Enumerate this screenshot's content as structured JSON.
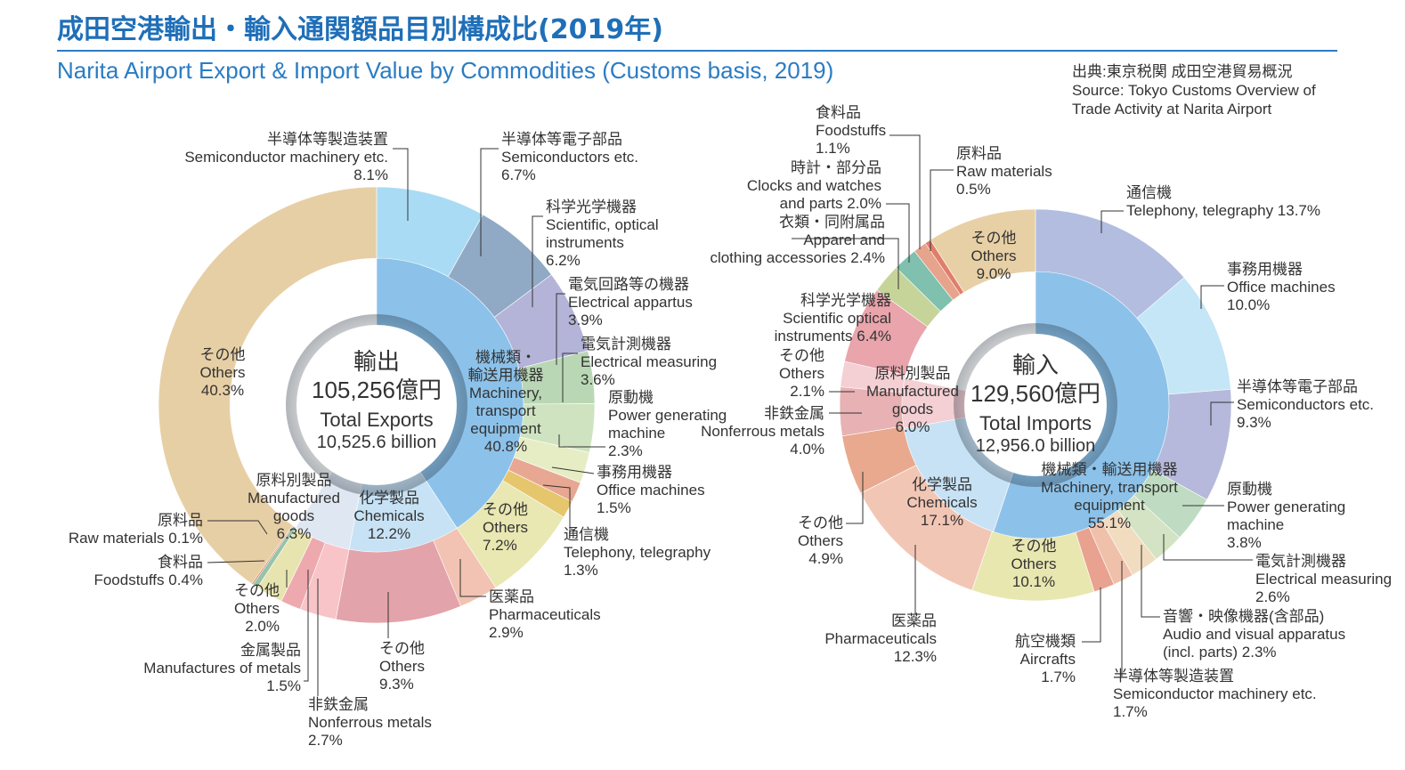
{
  "header": {
    "title_jp": "成田空港輸出・輸入通関額品目別構成比(2019年)",
    "title_en": "Narita Airport Export & Import Value by Commodities (Customs basis, 2019)",
    "source_lines": [
      "出典:東京税関 成田空港貿易概況",
      "Source: Tokyo Customs Overview of",
      "Trade Activity at Narita Airport"
    ]
  },
  "chart_data": [
    {
      "type": "pie",
      "name": "exports",
      "center_label": [
        "輸出",
        "105,256億円",
        "Total Exports",
        "10,525.6 billion"
      ],
      "outer": [
        {
          "label": [
            "半導体等製造装置",
            "Semiconductor machinery etc.",
            "8.1%"
          ],
          "value": 8.1,
          "color": "#a9dcf4"
        },
        {
          "label": [
            "半導体等電子部品",
            "Semiconductors etc.",
            "6.7%"
          ],
          "value": 6.7,
          "color": "#90a9c4"
        },
        {
          "label": [
            "科学光学機器",
            "Scientific, optical",
            "instruments",
            "6.2%"
          ],
          "value": 6.2,
          "color": "#b4b3d8"
        },
        {
          "label": [
            "電気回路等の機器",
            "Electrical appartus",
            "3.9%"
          ],
          "value": 3.9,
          "color": "#b9d7b4"
        },
        {
          "label": [
            "電気計測機器",
            "Electrical measuring",
            "3.6%"
          ],
          "value": 3.6,
          "color": "#cfe3c0"
        },
        {
          "label": [
            "原動機",
            "Power generating",
            "machine",
            "2.3%"
          ],
          "value": 2.3,
          "color": "#e6edc5"
        },
        {
          "label": [
            "事務用機器",
            "Office machines",
            "1.5%"
          ],
          "value": 1.5,
          "color": "#e7a792"
        },
        {
          "label": [
            "通信機",
            "Telephony, telegraphy",
            "1.3%"
          ],
          "value": 1.3,
          "color": "#e6c66c"
        },
        {
          "label": [
            "その他",
            "Others",
            "7.2%"
          ],
          "value": 7.2,
          "color": "#e9e7b2"
        },
        {
          "label": [
            "医薬品",
            "Pharmaceuticals",
            "2.9%"
          ],
          "value": 2.9,
          "color": "#f2c3b2"
        },
        {
          "label": [
            "その他",
            "Others",
            "9.3%"
          ],
          "value": 9.3,
          "color": "#e3a3aa"
        },
        {
          "label": [
            "非鉄金属",
            "Nonferrous metals",
            "2.7%"
          ],
          "value": 2.7,
          "color": "#f8c4c8"
        },
        {
          "label": [
            "金属製品",
            "Manufactures of metals",
            "1.5%"
          ],
          "value": 1.5,
          "color": "#eda9ad"
        },
        {
          "label": [
            "その他",
            "Others",
            "2.0%"
          ],
          "value": 2.0,
          "color": "#e8e4b0"
        },
        {
          "label": [
            "食料品",
            "Foodstuffs 0.4%"
          ],
          "value": 0.4,
          "color": "#98c3a8"
        },
        {
          "label": [
            "原料品",
            "Raw materials 0.1%"
          ],
          "value": 0.1,
          "color": "#d9664c"
        },
        {
          "label": [
            "その他",
            "Others",
            "40.3%"
          ],
          "value": 40.3,
          "color": "#e7cfa5"
        }
      ],
      "inner": [
        {
          "label": [
            "機械類・",
            "輸送用機器",
            "Machinery,",
            "transport",
            "equipment",
            "40.8%"
          ],
          "value": 40.8,
          "color": "#8cc2ea"
        },
        {
          "label": [
            "化学製品",
            "Chemicals",
            "12.2%"
          ],
          "value": 12.2,
          "color": "#c8e2f5"
        },
        {
          "label": [
            "原料別製品",
            "Manufactured",
            "goods",
            "6.3%"
          ],
          "value": 6.3,
          "color": "#dfe7f2"
        },
        {
          "label": [],
          "value": 40.7,
          "color": "#ffffff"
        }
      ]
    },
    {
      "type": "pie",
      "name": "imports",
      "center_label": [
        "輸入",
        "129,560億円",
        "Total Imports",
        "12,956.0 billion"
      ],
      "outer": [
        {
          "label": [
            "通信機",
            "Telephony, telegraphy 13.7%"
          ],
          "value": 13.7,
          "color": "#b2bddf"
        },
        {
          "label": [
            "事務用機器",
            "Office machines",
            "10.0%"
          ],
          "value": 10.0,
          "color": "#c4e6f6"
        },
        {
          "label": [
            "半導体等電子部品",
            "Semiconductors etc.",
            "9.3%"
          ],
          "value": 9.3,
          "color": "#b6b9dc"
        },
        {
          "label": [
            "原動機",
            "Power generating",
            "machine",
            "3.8%"
          ],
          "value": 3.8,
          "color": "#bfdcc2"
        },
        {
          "label": [
            "電気計測機器",
            "Electrical measuring",
            "2.6%"
          ],
          "value": 2.6,
          "color": "#d3e3c3"
        },
        {
          "label": [
            "音響・映像機器(含部品)",
            "Audio and visual apparatus",
            "(incl. parts) 2.3%"
          ],
          "value": 2.3,
          "color": "#f1dcc0"
        },
        {
          "label": [
            "半導体等製造装置",
            "Semiconductor machinery etc.",
            "1.7%"
          ],
          "value": 1.7,
          "color": "#efc1ab"
        },
        {
          "label": [
            "航空機類",
            "Aircrafts",
            "1.7%"
          ],
          "value": 1.7,
          "color": "#e9a190"
        },
        {
          "label": [
            "その他",
            "Others",
            "10.1%"
          ],
          "value": 10.1,
          "color": "#e9e7b0"
        },
        {
          "label": [
            "医薬品",
            "Pharmaceuticals",
            "12.3%"
          ],
          "value": 12.3,
          "color": "#f2c6b5"
        },
        {
          "label": [
            "その他",
            "Others",
            "4.9%"
          ],
          "value": 4.9,
          "color": "#e8a98e"
        },
        {
          "label": [
            "非鉄金属",
            "Nonferrous metals",
            "4.0%"
          ],
          "value": 4.0,
          "color": "#e8b1b4"
        },
        {
          "label": [
            "その他",
            "Others",
            "2.1%"
          ],
          "value": 2.1,
          "color": "#f4cfd4"
        },
        {
          "label": [
            "科学光学機器",
            "Scientific optical",
            "instruments 6.4%"
          ],
          "value": 6.4,
          "color": "#e9a4ac"
        },
        {
          "label": [
            "衣類・同附属品",
            "Apparel and",
            "clothing accessories 2.4%"
          ],
          "value": 2.4,
          "color": "#c6d49a"
        },
        {
          "label": [
            "時計・部分品",
            "Clocks and watches",
            "and parts 2.0%"
          ],
          "value": 2.0,
          "color": "#7fc0ae"
        },
        {
          "label": [
            "食料品",
            "Foodstuffs",
            "1.1%"
          ],
          "value": 1.1,
          "color": "#e6a48c"
        },
        {
          "label": [
            "原料品",
            "Raw materials",
            "0.5%"
          ],
          "value": 0.5,
          "color": "#e07e6a"
        },
        {
          "label": [
            "その他",
            "Others",
            "9.0%"
          ],
          "value": 9.0,
          "color": "#e8d0a6"
        }
      ],
      "inner": [
        {
          "label": [
            "機械類・輸送用機器",
            "Machinery, transport",
            "equipment",
            "55.1%"
          ],
          "value": 55.1,
          "color": "#8cc2ea"
        },
        {
          "label": [
            "化学製品",
            "Chemicals",
            "17.1%"
          ],
          "value": 17.1,
          "color": "#c8e2f5"
        },
        {
          "label": [
            "原料別製品",
            "Manufactured",
            "goods",
            "6.0%"
          ],
          "value": 6.0,
          "color": "#f4cfd4"
        },
        {
          "label": [],
          "value": 21.8,
          "color": "#ffffff"
        }
      ]
    }
  ]
}
